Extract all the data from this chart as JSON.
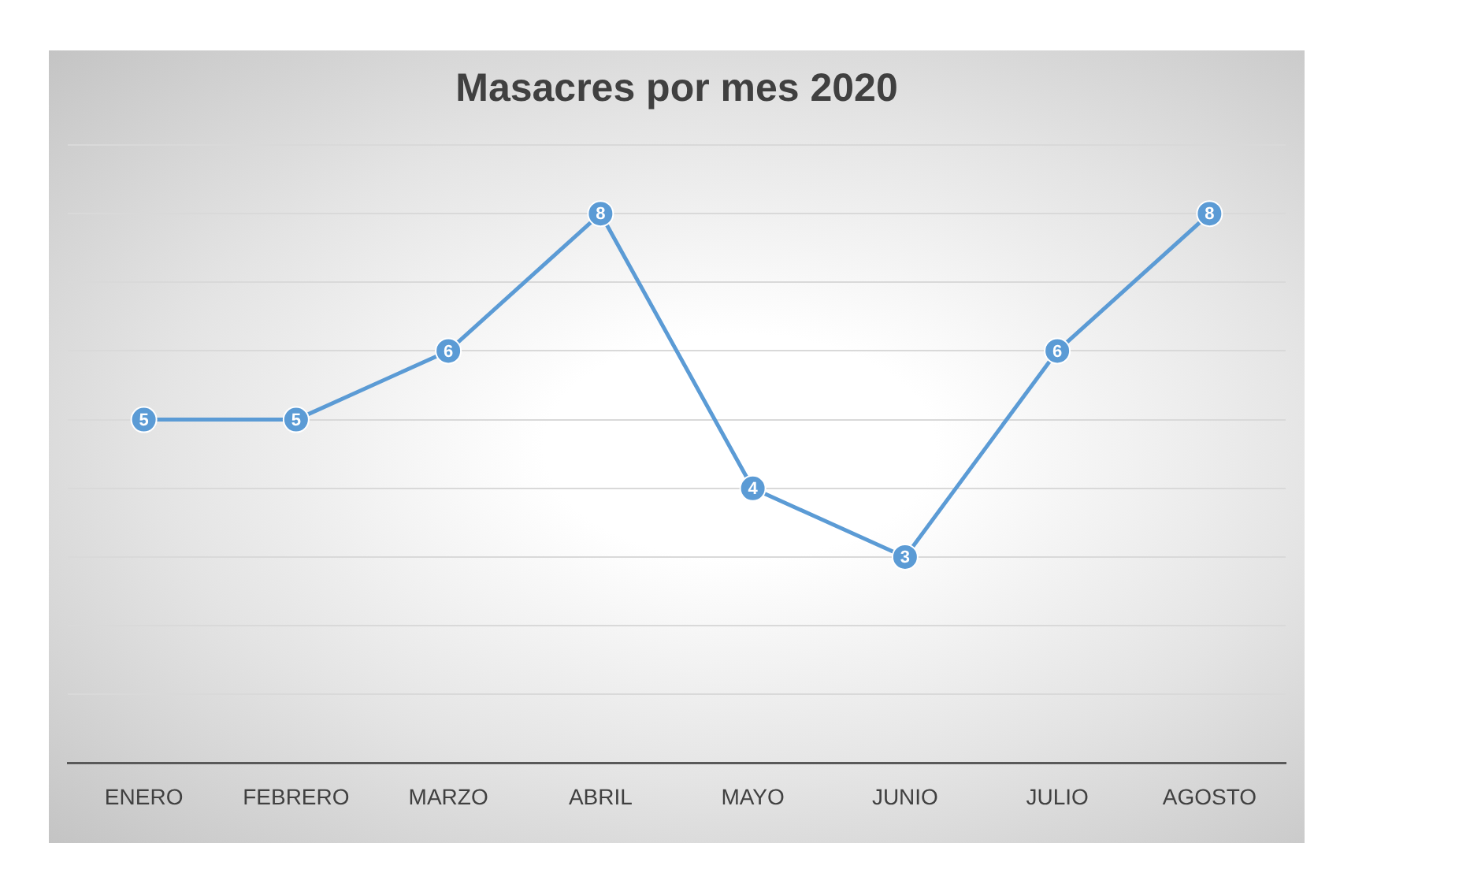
{
  "chart_data": {
    "type": "line",
    "title": "Masacres por mes 2020",
    "categories": [
      "ENERO",
      "FEBRERO",
      "MARZO",
      "ABRIL",
      "MAYO",
      "JUNIO",
      "JULIO",
      "AGOSTO"
    ],
    "series": [
      {
        "color": "#5b9bd5",
        "values": [
          5,
          5,
          6,
          8,
          4,
          3,
          6,
          8
        ]
      }
    ],
    "ylim": [
      0,
      9
    ],
    "yticks": [
      {
        "value": 0,
        "label": null
      },
      {
        "value": 1,
        "label": null
      },
      {
        "value": 2,
        "label": null
      },
      {
        "value": 3,
        "label": null
      },
      {
        "value": 4,
        "label": null
      },
      {
        "value": 5,
        "label": null
      },
      {
        "value": 6,
        "label": null
      },
      {
        "value": 7,
        "label": null
      },
      {
        "value": 8,
        "label": null
      },
      {
        "value": 9,
        "label": null
      }
    ],
    "tick_labels": "x",
    "grid": "y",
    "legend": false,
    "marker": "circle",
    "line_style": "solid",
    "data_labels": true
  }
}
